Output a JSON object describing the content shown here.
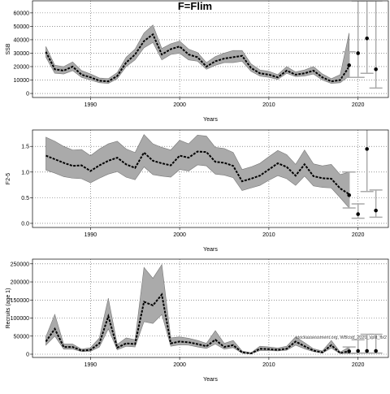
{
  "chart_data": [
    {
      "type": "line",
      "title": "F=Flim",
      "xlabel": "Years",
      "ylabel": "SSB",
      "x": [
        1985,
        1986,
        1987,
        1988,
        1989,
        1990,
        1991,
        1992,
        1993,
        1994,
        1995,
        1996,
        1997,
        1998,
        1999,
        2000,
        2001,
        2002,
        2003,
        2004,
        2005,
        2006,
        2007,
        2008,
        2009,
        2010,
        2011,
        2012,
        2013,
        2014,
        2015,
        2016,
        2017,
        2018,
        2019
      ],
      "values": [
        31000,
        18000,
        17000,
        20000,
        14000,
        12000,
        9500,
        9000,
        13000,
        23000,
        29000,
        39000,
        44000,
        29000,
        33000,
        35000,
        29000,
        27000,
        20000,
        24000,
        26000,
        27000,
        28000,
        19000,
        15000,
        14000,
        12000,
        17000,
        14000,
        15000,
        17000,
        12000,
        9000,
        10000,
        20000
      ],
      "band_low": [
        27000,
        15000,
        14500,
        17000,
        12000,
        10000,
        8000,
        7500,
        11000,
        20000,
        25000,
        34000,
        38000,
        25000,
        29000,
        30000,
        25000,
        24000,
        18000,
        21000,
        23000,
        23000,
        24000,
        16500,
        13000,
        12000,
        10500,
        15000,
        12500,
        13000,
        14500,
        10000,
        7500,
        8000,
        13000
      ],
      "band_high": [
        35000,
        21000,
        20000,
        23500,
        17000,
        14500,
        11500,
        11000,
        15500,
        27000,
        33000,
        45000,
        51000,
        33500,
        37000,
        39000,
        33000,
        30500,
        23000,
        27500,
        30000,
        32000,
        32000,
        22000,
        17500,
        16500,
        14000,
        20000,
        16000,
        17500,
        20000,
        14500,
        11000,
        14000,
        45000
      ],
      "points": {
        "x": [
          2019,
          2020,
          2021,
          2022
        ],
        "values": [
          21000,
          30000,
          41000,
          18000
        ],
        "err_low": [
          12000,
          12000,
          15000,
          4000
        ],
        "err_high": [
          31000,
          69000,
          69000,
          69000
        ]
      },
      "color": "#000000",
      "band_color": "#aaaaaa",
      "point_color": "#000000",
      "err_color": "#aaaaaa",
      "xlim": [
        1983.5,
        2023.4
      ],
      "xticks": [
        1990,
        2000,
        2010,
        2020
      ],
      "ylim": [
        -3000,
        69000
      ],
      "yticks": [
        0,
        10000,
        20000,
        30000,
        40000,
        50000,
        60000
      ],
      "grid": true
    },
    {
      "type": "line",
      "xlabel": "Years",
      "ylabel": "F2-5",
      "x": [
        1985,
        1986,
        1987,
        1988,
        1989,
        1990,
        1991,
        1992,
        1993,
        1994,
        1995,
        1996,
        1997,
        1998,
        1999,
        2000,
        2001,
        2002,
        2003,
        2004,
        2005,
        2006,
        2007,
        2008,
        2009,
        2010,
        2011,
        2012,
        2013,
        2014,
        2015,
        2016,
        2017,
        2018,
        2019
      ],
      "values": [
        1.32,
        1.25,
        1.18,
        1.12,
        1.13,
        1.02,
        1.13,
        1.22,
        1.28,
        1.15,
        1.08,
        1.38,
        1.22,
        1.17,
        1.13,
        1.32,
        1.28,
        1.4,
        1.39,
        1.2,
        1.18,
        1.12,
        0.82,
        0.87,
        0.93,
        1.05,
        1.17,
        1.1,
        0.93,
        1.15,
        0.92,
        0.88,
        0.87,
        0.68,
        0.57
      ],
      "band_low": [
        1.04,
        0.98,
        0.91,
        0.88,
        0.87,
        0.79,
        0.88,
        0.96,
        1.01,
        0.9,
        0.85,
        1.1,
        0.95,
        0.92,
        0.9,
        1.05,
        1.02,
        1.14,
        1.12,
        0.96,
        0.94,
        0.89,
        0.64,
        0.69,
        0.74,
        0.84,
        0.93,
        0.87,
        0.74,
        0.92,
        0.73,
        0.7,
        0.69,
        0.5,
        0.3
      ],
      "band_high": [
        1.68,
        1.6,
        1.5,
        1.43,
        1.44,
        1.32,
        1.45,
        1.55,
        1.6,
        1.45,
        1.38,
        1.73,
        1.55,
        1.48,
        1.43,
        1.62,
        1.55,
        1.72,
        1.7,
        1.48,
        1.46,
        1.38,
        1.05,
        1.1,
        1.17,
        1.3,
        1.42,
        1.34,
        1.15,
        1.43,
        1.16,
        1.12,
        1.15,
        0.95,
        1.0
      ],
      "points": {
        "x": [
          2019,
          2020,
          2021,
          2022
        ],
        "values": [
          0.55,
          0.18,
          1.45,
          0.25
        ],
        "err_low": [
          0.3,
          0.1,
          0.62,
          0.12
        ],
        "err_high": [
          1.0,
          0.38,
          1.85,
          0.65
        ]
      },
      "color": "#000000",
      "band_color": "#aaaaaa",
      "point_color": "#000000",
      "err_color": "#aaaaaa",
      "xlim": [
        1983.5,
        2023.4
      ],
      "xticks": [
        1990,
        2000,
        2010,
        2020
      ],
      "ylim": [
        -0.08,
        1.82
      ],
      "yticks": [
        {
          "value": 0,
          "label": "0.0"
        },
        0.5,
        {
          "value": 1,
          "label": "1.0"
        },
        1.5
      ],
      "grid": true
    },
    {
      "type": "line",
      "xlabel": "Years",
      "ylabel": "Recruits (age 1)",
      "annotation": "stockassessment.org, WBcod_2020_split_fix2",
      "x": [
        1985,
        1986,
        1987,
        1988,
        1989,
        1990,
        1991,
        1992,
        1993,
        1994,
        1995,
        1996,
        1997,
        1998,
        1999,
        2000,
        2001,
        2002,
        2003,
        2004,
        2005,
        2006,
        2007,
        2008,
        2009,
        2010,
        2011,
        2012,
        2013,
        2014,
        2015,
        2016,
        2017,
        2018,
        2019
      ],
      "values": [
        35000,
        70000,
        20000,
        20000,
        10000,
        12000,
        30000,
        105000,
        18000,
        30000,
        28000,
        145000,
        135000,
        165000,
        30000,
        35000,
        33000,
        28000,
        22000,
        40000,
        20000,
        25000,
        5000,
        2000,
        15000,
        14000,
        12000,
        15000,
        35000,
        22000,
        10000,
        5000,
        25000,
        3000,
        8000
      ],
      "band_low": [
        25000,
        50000,
        14000,
        14000,
        7000,
        8000,
        20000,
        70000,
        12000,
        22000,
        20000,
        90000,
        85000,
        110000,
        22000,
        26000,
        25000,
        20000,
        16000,
        28000,
        14000,
        18000,
        3000,
        1000,
        10000,
        10000,
        9000,
        11000,
        25000,
        15000,
        7000,
        3000,
        17000,
        1500,
        4000
      ],
      "band_high": [
        48000,
        110000,
        28000,
        28000,
        14000,
        18000,
        45000,
        155000,
        27000,
        45000,
        40000,
        240000,
        210000,
        248000,
        45000,
        48000,
        44000,
        38000,
        30000,
        65000,
        30000,
        38000,
        9000,
        4000,
        22000,
        20000,
        17000,
        22000,
        48000,
        32000,
        15000,
        9000,
        38000,
        6000,
        20000
      ],
      "points": {
        "x": [
          2019,
          2020,
          2021,
          2022
        ],
        "values": [
          8000,
          9000,
          9000,
          9000
        ],
        "err_low": [
          2000,
          3000,
          3000,
          3000
        ],
        "err_high": [
          20000,
          40000,
          55000,
          55000
        ]
      },
      "color": "#000000",
      "band_color": "#aaaaaa",
      "point_color": "#000000",
      "err_color": "#aaaaaa",
      "xlim": [
        1983.5,
        2023.4
      ],
      "xticks": [
        1990,
        2000,
        2010,
        2020
      ],
      "ylim": [
        -9000,
        263000
      ],
      "yticks": [
        0,
        50000,
        100000,
        150000,
        200000,
        250000
      ],
      "grid": true
    }
  ]
}
